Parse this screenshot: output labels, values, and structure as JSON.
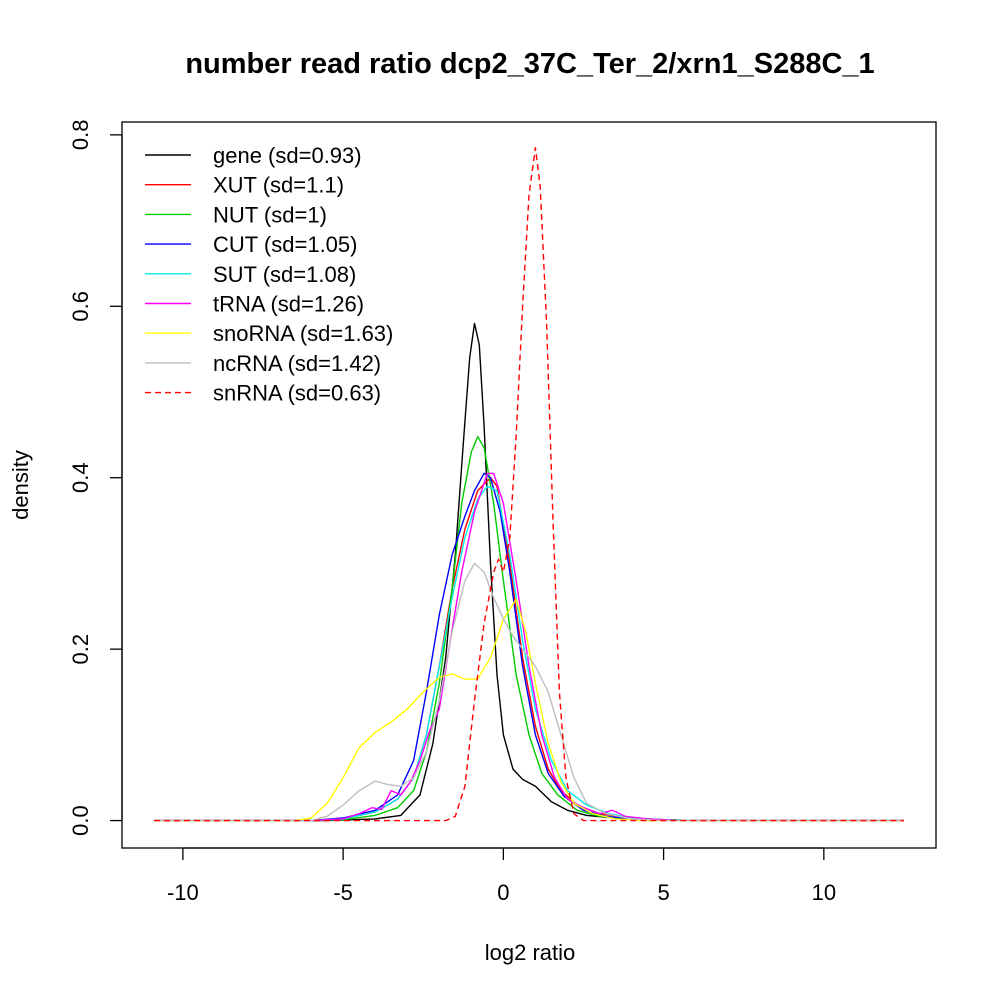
{
  "chart_data": {
    "type": "line",
    "title": "number read ratio dcp2_37C_Ter_2/xrn1_S288C_1",
    "xlabel": "log2 ratio",
    "ylabel": "density",
    "xlim": [
      -11.9,
      13.5
    ],
    "ylim": [
      -0.032,
      0.815
    ],
    "x_ticks": [
      -10,
      -5,
      0,
      5,
      10
    ],
    "x_tick_labels": [
      "-10",
      "-5",
      "0",
      "5",
      "10"
    ],
    "y_ticks": [
      0.0,
      0.2,
      0.4,
      0.6,
      0.8
    ],
    "y_tick_labels": [
      "0.0",
      "0.2",
      "0.4",
      "0.6",
      "0.8"
    ],
    "grid": false,
    "legend_position": "top-left",
    "series": [
      {
        "name": "gene",
        "label": "gene (sd=0.93)",
        "color": "#000000",
        "dashed": false,
        "points": [
          [
            -10.9,
            0
          ],
          [
            -5.5,
            0
          ],
          [
            -4,
            0.002
          ],
          [
            -3.2,
            0.006
          ],
          [
            -2.6,
            0.03
          ],
          [
            -2.2,
            0.09
          ],
          [
            -1.8,
            0.19
          ],
          [
            -1.5,
            0.31
          ],
          [
            -1.25,
            0.44
          ],
          [
            -1.05,
            0.54
          ],
          [
            -0.9,
            0.58
          ],
          [
            -0.75,
            0.555
          ],
          [
            -0.6,
            0.46
          ],
          [
            -0.4,
            0.3
          ],
          [
            -0.2,
            0.17
          ],
          [
            0,
            0.1
          ],
          [
            0.3,
            0.06
          ],
          [
            0.6,
            0.048
          ],
          [
            1.0,
            0.04
          ],
          [
            1.5,
            0.022
          ],
          [
            2.0,
            0.012
          ],
          [
            2.6,
            0.006
          ],
          [
            3.5,
            0.003
          ],
          [
            5,
            0.001
          ],
          [
            6,
            0
          ],
          [
            12.5,
            0
          ]
        ]
      },
      {
        "name": "XUT",
        "label": "XUT (sd=1.1)",
        "color": "#ff0000",
        "dashed": false,
        "points": [
          [
            -10.9,
            0
          ],
          [
            -6,
            0
          ],
          [
            -5,
            0.002
          ],
          [
            -4,
            0.01
          ],
          [
            -3.3,
            0.025
          ],
          [
            -2.8,
            0.05
          ],
          [
            -2.4,
            0.1
          ],
          [
            -2.0,
            0.18
          ],
          [
            -1.6,
            0.27
          ],
          [
            -1.2,
            0.34
          ],
          [
            -0.8,
            0.385
          ],
          [
            -0.4,
            0.4
          ],
          [
            -0.2,
            0.39
          ],
          [
            0.2,
            0.3
          ],
          [
            0.6,
            0.19
          ],
          [
            1.0,
            0.11
          ],
          [
            1.4,
            0.06
          ],
          [
            1.8,
            0.035
          ],
          [
            2.3,
            0.018
          ],
          [
            3,
            0.008
          ],
          [
            4,
            0.003
          ],
          [
            5,
            0.001
          ],
          [
            6,
            0
          ],
          [
            12.5,
            0
          ]
        ]
      },
      {
        "name": "NUT",
        "label": "NUT (sd=1)",
        "color": "#00cc00",
        "dashed": false,
        "points": [
          [
            -10.9,
            0
          ],
          [
            -6,
            0
          ],
          [
            -5,
            0.001
          ],
          [
            -4,
            0.006
          ],
          [
            -3.3,
            0.015
          ],
          [
            -2.8,
            0.035
          ],
          [
            -2.4,
            0.08
          ],
          [
            -2.0,
            0.16
          ],
          [
            -1.6,
            0.27
          ],
          [
            -1.3,
            0.37
          ],
          [
            -1.0,
            0.43
          ],
          [
            -0.8,
            0.448
          ],
          [
            -0.6,
            0.435
          ],
          [
            -0.3,
            0.37
          ],
          [
            0,
            0.28
          ],
          [
            0.4,
            0.17
          ],
          [
            0.8,
            0.1
          ],
          [
            1.2,
            0.055
          ],
          [
            1.7,
            0.03
          ],
          [
            2.3,
            0.012
          ],
          [
            3,
            0.005
          ],
          [
            4,
            0.002
          ],
          [
            5,
            0.001
          ],
          [
            6,
            0
          ],
          [
            12.5,
            0
          ]
        ]
      },
      {
        "name": "CUT",
        "label": "CUT (sd=1.05)",
        "color": "#0000ff",
        "dashed": false,
        "points": [
          [
            -10.9,
            0
          ],
          [
            -6,
            0
          ],
          [
            -5,
            0.003
          ],
          [
            -4,
            0.012
          ],
          [
            -3.3,
            0.03
          ],
          [
            -2.8,
            0.07
          ],
          [
            -2.4,
            0.15
          ],
          [
            -2.0,
            0.24
          ],
          [
            -1.6,
            0.31
          ],
          [
            -1.2,
            0.355
          ],
          [
            -0.9,
            0.385
          ],
          [
            -0.6,
            0.405
          ],
          [
            -0.4,
            0.4
          ],
          [
            -0.1,
            0.36
          ],
          [
            0.2,
            0.29
          ],
          [
            0.6,
            0.18
          ],
          [
            1.0,
            0.1
          ],
          [
            1.4,
            0.055
          ],
          [
            1.9,
            0.028
          ],
          [
            2.5,
            0.012
          ],
          [
            3.2,
            0.005
          ],
          [
            4,
            0.002
          ],
          [
            5,
            0.001
          ],
          [
            6,
            0
          ],
          [
            12.5,
            0
          ]
        ]
      },
      {
        "name": "SUT",
        "label": "SUT (sd=1.08)",
        "color": "#00eeee",
        "dashed": false,
        "points": [
          [
            -10.9,
            0
          ],
          [
            -6,
            0
          ],
          [
            -5,
            0.002
          ],
          [
            -4,
            0.01
          ],
          [
            -3.3,
            0.025
          ],
          [
            -2.8,
            0.05
          ],
          [
            -2.4,
            0.1
          ],
          [
            -2.0,
            0.18
          ],
          [
            -1.6,
            0.26
          ],
          [
            -1.2,
            0.33
          ],
          [
            -0.8,
            0.375
          ],
          [
            -0.5,
            0.39
          ],
          [
            -0.2,
            0.385
          ],
          [
            0.2,
            0.31
          ],
          [
            0.6,
            0.21
          ],
          [
            1.0,
            0.13
          ],
          [
            1.5,
            0.07
          ],
          [
            2.0,
            0.035
          ],
          [
            2.6,
            0.018
          ],
          [
            3.3,
            0.008
          ],
          [
            4,
            0.003
          ],
          [
            5,
            0.001
          ],
          [
            6,
            0
          ],
          [
            12.5,
            0
          ]
        ]
      },
      {
        "name": "tRNA",
        "label": "tRNA (sd=1.26)",
        "color": "#ff00ff",
        "dashed": false,
        "points": [
          [
            -10.9,
            0
          ],
          [
            -6,
            0
          ],
          [
            -5,
            0.002
          ],
          [
            -4.5,
            0.008
          ],
          [
            -4.1,
            0.015
          ],
          [
            -3.8,
            0.013
          ],
          [
            -3.5,
            0.035
          ],
          [
            -3.2,
            0.03
          ],
          [
            -2.9,
            0.045
          ],
          [
            -2.6,
            0.07
          ],
          [
            -2.3,
            0.105
          ],
          [
            -2.0,
            0.13
          ],
          [
            -1.7,
            0.2
          ],
          [
            -1.3,
            0.29
          ],
          [
            -0.9,
            0.36
          ],
          [
            -0.5,
            0.405
          ],
          [
            -0.3,
            0.405
          ],
          [
            0,
            0.37
          ],
          [
            0.4,
            0.28
          ],
          [
            0.8,
            0.18
          ],
          [
            1.2,
            0.1
          ],
          [
            1.6,
            0.05
          ],
          [
            2.0,
            0.025
          ],
          [
            2.5,
            0.015
          ],
          [
            3.0,
            0.008
          ],
          [
            3.4,
            0.012
          ],
          [
            3.8,
            0.005
          ],
          [
            4.5,
            0.002
          ],
          [
            5.5,
            0
          ],
          [
            12.5,
            0
          ]
        ]
      },
      {
        "name": "snoRNA",
        "label": "snoRNA (sd=1.63)",
        "color": "#ffff00",
        "dashed": false,
        "points": [
          [
            -10.9,
            0
          ],
          [
            -6.5,
            0
          ],
          [
            -6,
            0.003
          ],
          [
            -5.5,
            0.02
          ],
          [
            -5.0,
            0.05
          ],
          [
            -4.5,
            0.085
          ],
          [
            -4.0,
            0.103
          ],
          [
            -3.5,
            0.115
          ],
          [
            -3.0,
            0.13
          ],
          [
            -2.5,
            0.15
          ],
          [
            -2.0,
            0.167
          ],
          [
            -1.6,
            0.171
          ],
          [
            -1.2,
            0.165
          ],
          [
            -0.8,
            0.165
          ],
          [
            -0.4,
            0.19
          ],
          [
            0,
            0.235
          ],
          [
            0.4,
            0.258
          ],
          [
            0.7,
            0.22
          ],
          [
            1.0,
            0.16
          ],
          [
            1.4,
            0.09
          ],
          [
            1.8,
            0.045
          ],
          [
            2.2,
            0.02
          ],
          [
            2.8,
            0.008
          ],
          [
            3.5,
            0.002
          ],
          [
            4.5,
            0
          ],
          [
            12.5,
            0
          ]
        ]
      },
      {
        "name": "ncRNA",
        "label": "ncRNA (sd=1.42)",
        "color": "#bebebe",
        "dashed": false,
        "points": [
          [
            -10.9,
            0
          ],
          [
            -6,
            0
          ],
          [
            -5.5,
            0.005
          ],
          [
            -5,
            0.018
          ],
          [
            -4.5,
            0.035
          ],
          [
            -4.0,
            0.046
          ],
          [
            -3.6,
            0.042
          ],
          [
            -3.2,
            0.04
          ],
          [
            -2.8,
            0.05
          ],
          [
            -2.4,
            0.08
          ],
          [
            -2.0,
            0.14
          ],
          [
            -1.6,
            0.22
          ],
          [
            -1.2,
            0.28
          ],
          [
            -0.9,
            0.3
          ],
          [
            -0.6,
            0.29
          ],
          [
            -0.3,
            0.26
          ],
          [
            0,
            0.235
          ],
          [
            0.3,
            0.215
          ],
          [
            0.6,
            0.2
          ],
          [
            1.0,
            0.18
          ],
          [
            1.4,
            0.15
          ],
          [
            1.8,
            0.1
          ],
          [
            2.2,
            0.05
          ],
          [
            2.6,
            0.02
          ],
          [
            3.2,
            0.008
          ],
          [
            4,
            0.002
          ],
          [
            5,
            0
          ],
          [
            12.5,
            0
          ]
        ]
      },
      {
        "name": "snRNA",
        "label": "snRNA (sd=0.63)",
        "color": "#ff0000",
        "dashed": true,
        "points": [
          [
            -10.9,
            0
          ],
          [
            -1.8,
            0
          ],
          [
            -1.5,
            0.005
          ],
          [
            -1.2,
            0.04
          ],
          [
            -0.9,
            0.14
          ],
          [
            -0.6,
            0.23
          ],
          [
            -0.3,
            0.29
          ],
          [
            -0.15,
            0.305
          ],
          [
            0,
            0.29
          ],
          [
            0.2,
            0.33
          ],
          [
            0.4,
            0.45
          ],
          [
            0.6,
            0.6
          ],
          [
            0.8,
            0.73
          ],
          [
            1.0,
            0.785
          ],
          [
            1.15,
            0.74
          ],
          [
            1.35,
            0.58
          ],
          [
            1.55,
            0.35
          ],
          [
            1.75,
            0.15
          ],
          [
            1.95,
            0.05
          ],
          [
            2.2,
            0.008
          ],
          [
            2.5,
            0
          ],
          [
            12.5,
            0
          ]
        ]
      }
    ]
  }
}
